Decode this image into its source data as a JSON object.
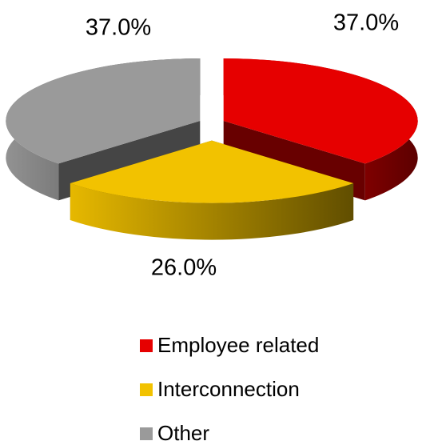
{
  "chart_data": {
    "type": "pie",
    "categories": [
      "Employee related",
      "Interconnection",
      "Other"
    ],
    "values": [
      37,
      26,
      37
    ],
    "value_labels": [
      "37.0%",
      "26.0%",
      "37.0%"
    ],
    "colors": [
      "#e60000",
      "#f2c200",
      "#9a9a9a"
    ],
    "legend": "bottom"
  }
}
